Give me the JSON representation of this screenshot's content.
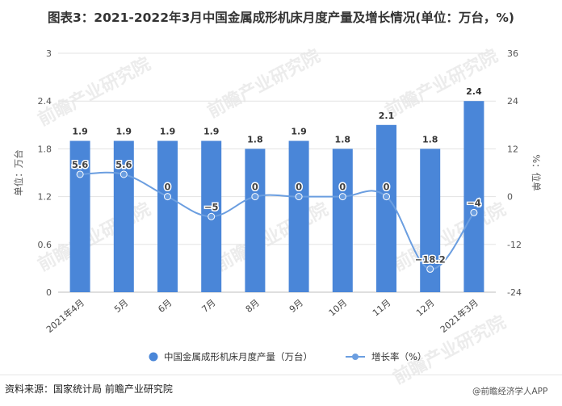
{
  "title": "图表3：2021-2022年3月中国金属成形机床月度产量及增长情况(单位：万台，%)",
  "source_text": "资料来源：国家统计局 前瞻产业研究院",
  "brand_text": "@前瞻经济学人APP",
  "watermark_text": "前瞻产业研究院",
  "chart_data": {
    "type": "bar",
    "categories": [
      "2021年4月",
      "5月",
      "6月",
      "7月",
      "8月",
      "9月",
      "10月",
      "11月",
      "12月",
      "2021年3月"
    ],
    "series": [
      {
        "name": "中国金属成形机床月度产量（万台）",
        "type": "bar",
        "axis": "left",
        "values": [
          1.9,
          1.9,
          1.9,
          1.9,
          1.8,
          1.9,
          1.8,
          2.1,
          1.8,
          2.4
        ],
        "labels": [
          "1.9",
          "1.9",
          "1.9",
          "1.9",
          "1.8",
          "1.9",
          "1.8",
          "2.1",
          "1.8",
          "2.4"
        ],
        "color": "#4a86d8"
      },
      {
        "name": "增长率（%）",
        "type": "line",
        "axis": "right",
        "values": [
          5.6,
          5.6,
          0,
          -5,
          0,
          0,
          0,
          0,
          -18.2,
          -4
        ],
        "labels": [
          "5.6",
          "5.6",
          "0",
          "−5",
          "0",
          "0",
          "0",
          "0",
          "−18.2",
          "−4"
        ],
        "color": "#6b9ee0"
      }
    ],
    "ylabel": "单位：万台",
    "y2label": "%：位单",
    "ylim": [
      0,
      3
    ],
    "y2lim": [
      -24,
      36
    ],
    "yticks": [
      "0",
      "0.6",
      "1.2",
      "1.8",
      "2.4",
      "3"
    ],
    "y2ticks": [
      "-24",
      "-12",
      "0",
      "12",
      "24",
      "36"
    ],
    "grid": true,
    "legend": "bottom"
  }
}
